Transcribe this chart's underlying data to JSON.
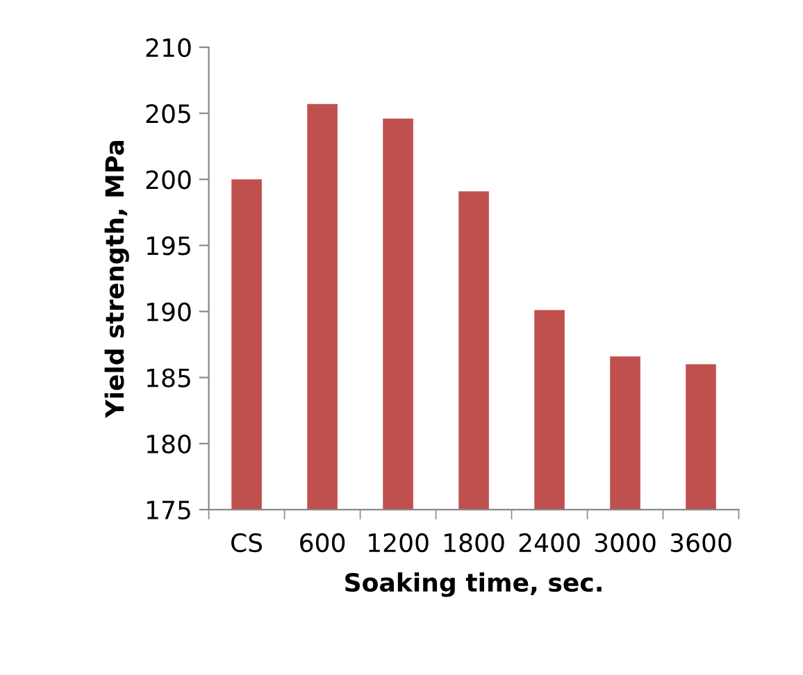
{
  "chart_data": {
    "type": "bar",
    "xlabel": "Soaking time, sec.",
    "ylabel": "Yield strength, MPa",
    "categories": [
      "CS",
      "600",
      "1200",
      "1800",
      "2400",
      "3000",
      "3600"
    ],
    "values": [
      200.0,
      205.7,
      204.6,
      199.1,
      190.1,
      186.6,
      186.0
    ],
    "color": "#c0504d",
    "ylim": [
      175,
      210
    ],
    "yticks": [
      175,
      180,
      185,
      190,
      195,
      200,
      205,
      210
    ],
    "grid": false,
    "legend": false
  }
}
